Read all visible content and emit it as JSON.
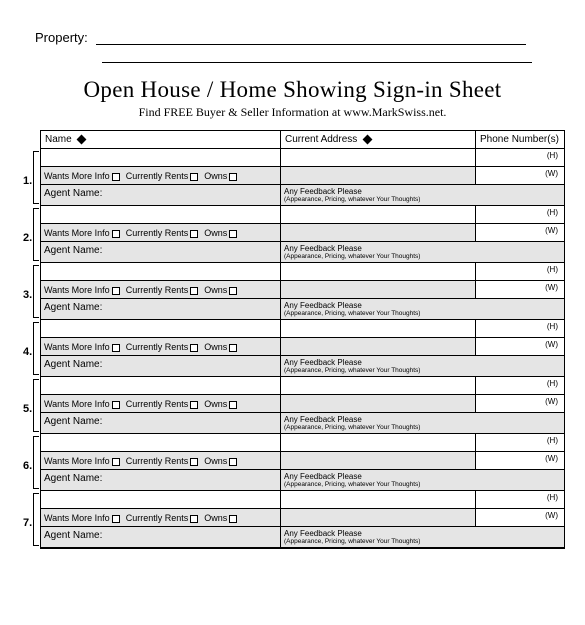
{
  "header": {
    "property_label": "Property:",
    "title": "Open House / Home Showing Sign-in Sheet",
    "subtitle": "Find FREE Buyer & Seller Information at www.MarkSwiss.net."
  },
  "columns": {
    "name": "Name",
    "address": "Current Address",
    "phone": "Phone Number(s)"
  },
  "labels": {
    "wants_more_info": "Wants More Info",
    "currently_rents": "Currently Rents",
    "owns": "Owns",
    "agent_name": "Agent Name:",
    "feedback_title": "Any Feedback Please",
    "feedback_sub": "(Appearance, Pricing, whatever Your Thoughts)",
    "phone_h": "(H)",
    "phone_w": "(W)"
  },
  "entries": [
    {
      "num": "1."
    },
    {
      "num": "2."
    },
    {
      "num": "3."
    },
    {
      "num": "4."
    },
    {
      "num": "5."
    },
    {
      "num": "6."
    },
    {
      "num": "7."
    }
  ],
  "colors": {
    "shade": "#e5e5e5",
    "border": "#000000",
    "background": "#ffffff"
  }
}
